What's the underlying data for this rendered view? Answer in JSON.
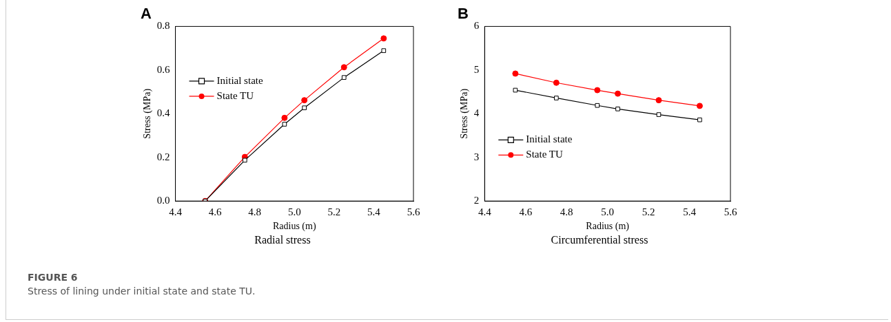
{
  "chart_data": [
    {
      "type": "line",
      "title": "A",
      "xlabel": "Radius (m)",
      "ylabel": "Stress (MPa)",
      "x": [
        4.55,
        4.75,
        4.95,
        5.05,
        5.25,
        5.45
      ],
      "series": [
        {
          "name": "Initial state",
          "color": "#000000",
          "marker": "square",
          "values": [
            0,
            0.187,
            0.352,
            0.427,
            0.566,
            0.689
          ]
        },
        {
          "name": "State TU",
          "color": "#ff0000",
          "marker": "circle",
          "values": [
            0,
            0.202,
            0.381,
            0.462,
            0.613,
            0.745
          ]
        }
      ],
      "xlim": [
        4.4,
        5.6
      ],
      "xticks": [
        4.4,
        4.6,
        4.8,
        {
          "value": 5,
          "label": "5.0"
        },
        5.2,
        5.4,
        5.6
      ],
      "ylim": [
        0,
        0.8
      ],
      "yticks": [
        {
          "value": 0,
          "label": "0.0"
        },
        0.2,
        0.4,
        0.6,
        0.8
      ],
      "grid": false,
      "legend": "top left",
      "annotations": [
        "Radial stress",
        "FIGURE 6",
        "Stress of lining under initial state and state TU."
      ]
    },
    {
      "type": "line",
      "title": "B",
      "xlabel": "Radius (m)",
      "ylabel": "Stress (MPa)",
      "x": [
        4.55,
        4.75,
        4.95,
        5.05,
        5.25,
        5.45
      ],
      "series": [
        {
          "name": "Initial state",
          "color": "#000000",
          "marker": "square",
          "values": [
            4.54,
            4.36,
            4.19,
            4.11,
            3.98,
            3.86
          ]
        },
        {
          "name": "State TU",
          "color": "#ff0000",
          "marker": "circle",
          "values": [
            4.92,
            4.71,
            4.54,
            4.46,
            4.31,
            4.18
          ]
        }
      ],
      "xlim": [
        4.4,
        5.6
      ],
      "xticks": [
        4.4,
        4.6,
        4.8,
        {
          "value": 5,
          "label": "5.0"
        },
        5.2,
        5.4,
        5.6
      ],
      "ylim": [
        2,
        6
      ],
      "yticks": [
        2,
        3,
        4,
        5,
        6
      ],
      "grid": false,
      "legend": "bottom left",
      "annotations": [
        "Circumferential stress"
      ]
    }
  ]
}
